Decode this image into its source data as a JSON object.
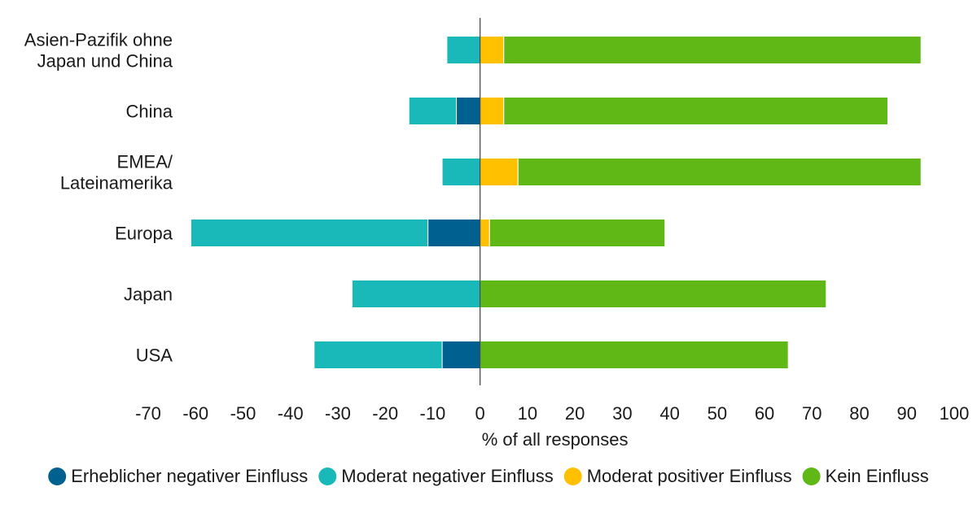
{
  "chart_data": {
    "type": "bar",
    "orientation": "horizontal",
    "stacked": true,
    "categories": [
      [
        "Asien-Pazifik ohne",
        "Japan und China"
      ],
      [
        "China"
      ],
      [
        "EMEA/",
        "Lateinamerika"
      ],
      [
        "Europa"
      ],
      [
        "Japan"
      ],
      [
        "USA"
      ]
    ],
    "series": [
      {
        "name": "Erheblicher negativer Einfluss",
        "color": "#00608f",
        "values": [
          0,
          -5,
          0,
          -11,
          0,
          -8
        ]
      },
      {
        "name": "Moderat negativer Einfluss",
        "color": "#19b9b9",
        "values": [
          -7,
          -10,
          -8,
          -50,
          -27,
          -27
        ]
      },
      {
        "name": "Moderat positiver Einfluss",
        "color": "#ffc000",
        "values": [
          5,
          5,
          8,
          2,
          0,
          0
        ]
      },
      {
        "name": "Kein Einfluss",
        "color": "#5fb816",
        "values": [
          88,
          81,
          85,
          37,
          73,
          65
        ]
      }
    ],
    "xlim": [
      -70,
      100
    ],
    "xticks": [
      -70,
      -60,
      -50,
      -40,
      -30,
      -20,
      -10,
      0,
      10,
      20,
      30,
      40,
      50,
      60,
      70,
      80,
      90,
      100
    ],
    "xlabel": "% of all responses",
    "grid": false,
    "legend_position": "bottom"
  }
}
